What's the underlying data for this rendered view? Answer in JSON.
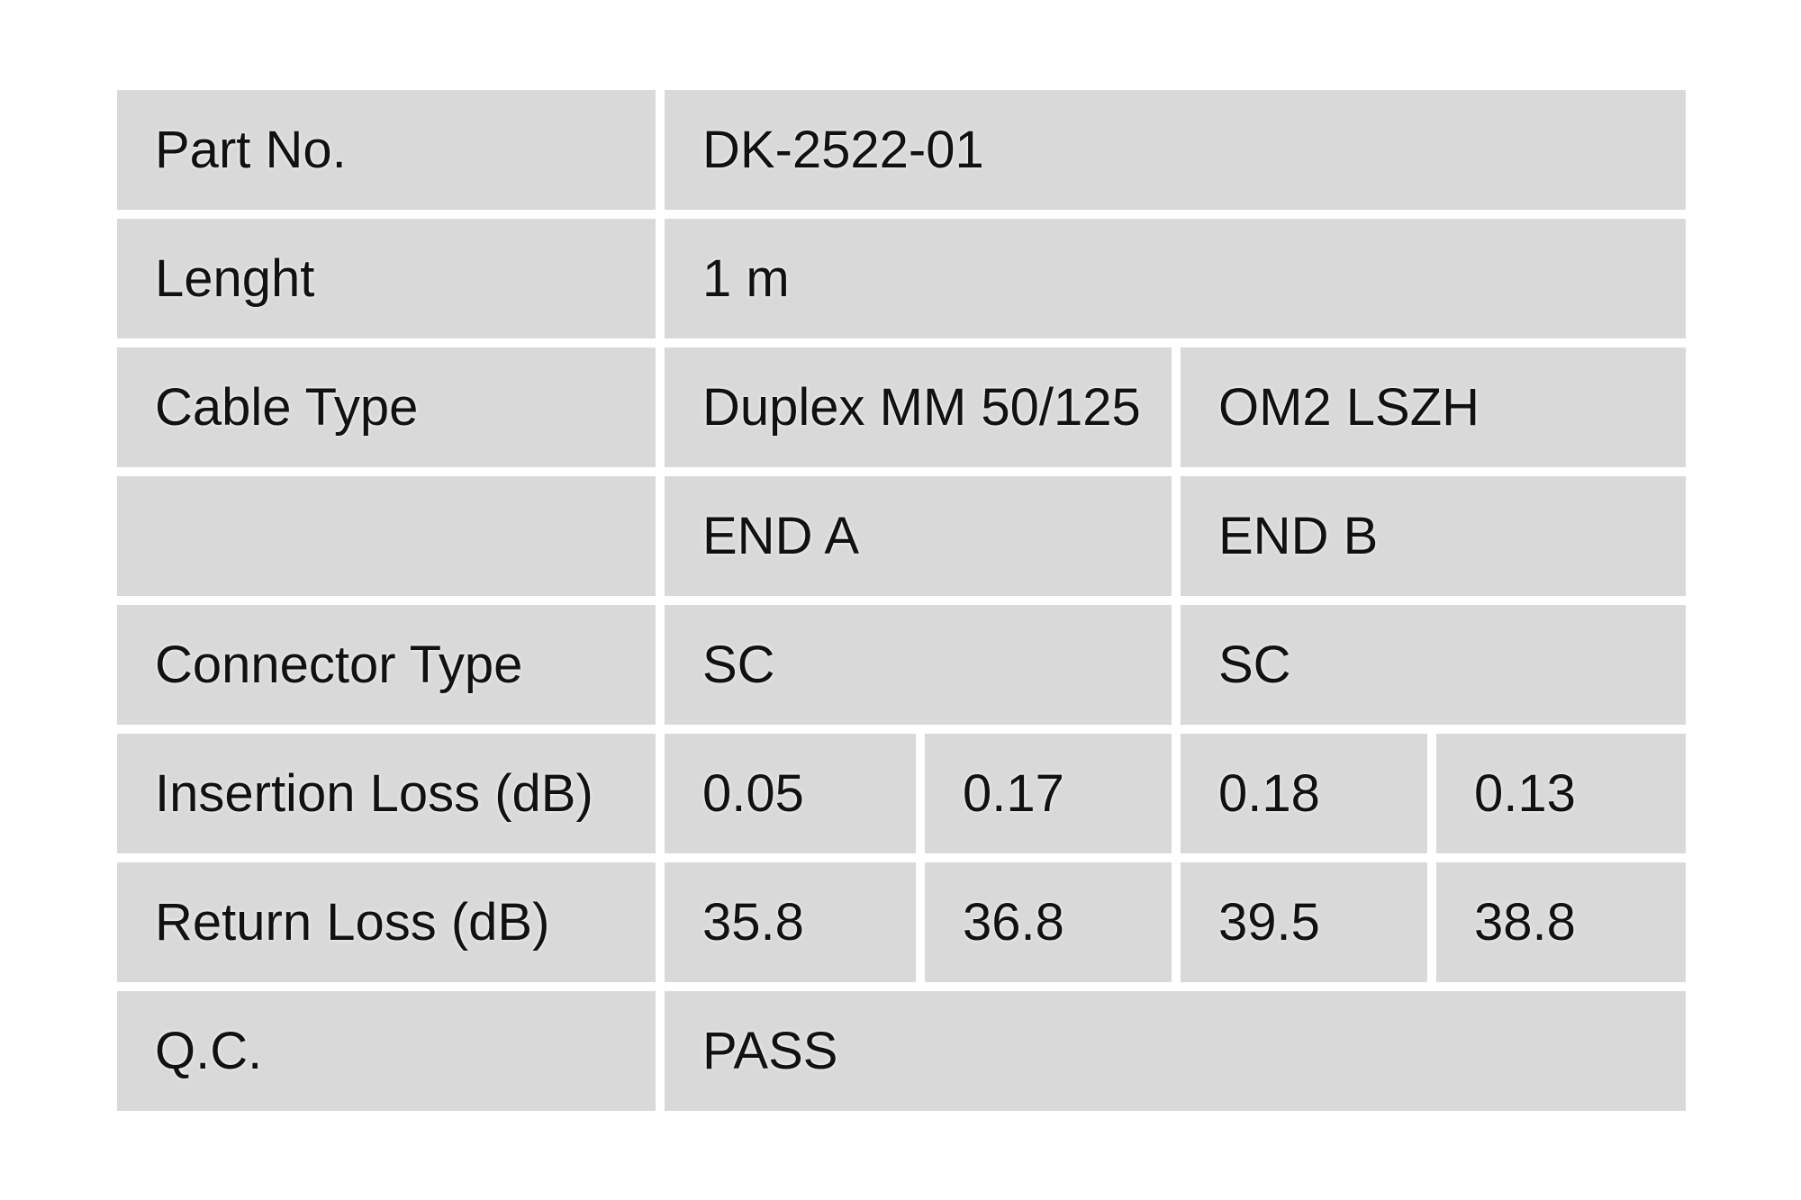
{
  "colors": {
    "page_bg": "#ffffff",
    "cell_bg": "#d9d9d9",
    "text": "#111111"
  },
  "table": {
    "rows": [
      {
        "label": "Part No.",
        "cells": [
          {
            "text": "DK-2522-01",
            "span": "full"
          }
        ]
      },
      {
        "label": "Lenght",
        "cells": [
          {
            "text": "1 m",
            "span": "full"
          }
        ]
      },
      {
        "label": "Cable Type",
        "cells": [
          {
            "text": "Duplex MM 50/125",
            "span": "left2"
          },
          {
            "text": "OM2 LSZH",
            "span": "right2"
          }
        ]
      },
      {
        "label": "",
        "cells": [
          {
            "text": "END A",
            "span": "left2"
          },
          {
            "text": "END B",
            "span": "right2"
          }
        ]
      },
      {
        "label": "Connector Type",
        "cells": [
          {
            "text": "SC",
            "span": "left2"
          },
          {
            "text": "SC",
            "span": "right2"
          }
        ]
      },
      {
        "label": "Insertion Loss (dB)",
        "cells": [
          {
            "text": "0.05",
            "span": "v1"
          },
          {
            "text": "0.17",
            "span": "v2"
          },
          {
            "text": "0.18",
            "span": "v3"
          },
          {
            "text": "0.13",
            "span": "v4"
          }
        ]
      },
      {
        "label": "Return Loss (dB)",
        "cells": [
          {
            "text": "35.8",
            "span": "v1"
          },
          {
            "text": "36.8",
            "span": "v2"
          },
          {
            "text": "39.5",
            "span": "v3"
          },
          {
            "text": "38.8",
            "span": "v4"
          }
        ]
      },
      {
        "label": "Q.C.",
        "cells": [
          {
            "text": "PASS",
            "span": "full"
          }
        ]
      }
    ]
  }
}
